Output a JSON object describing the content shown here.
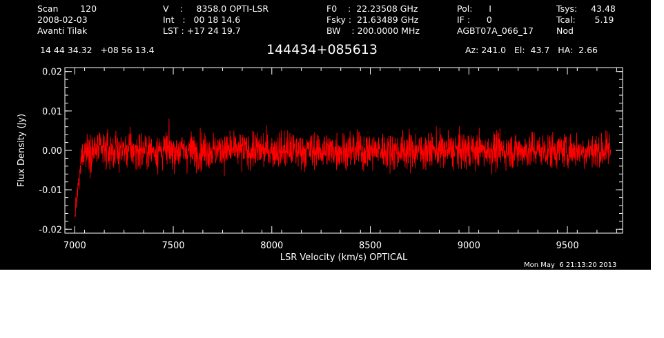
{
  "header": {
    "col1": [
      "Scan        120",
      "2008-02-03",
      "Avanti Tilak"
    ],
    "col2": [
      "V    :     8358.0 OPTI-LSR",
      "Int   :   00 18 14.6",
      "LST : +17 24 19.7"
    ],
    "col3": [
      "F0    :  22.23508 GHz",
      "Fsky :  21.63489 GHz",
      "BW    : 200.0000 MHz"
    ],
    "col4": [
      "Pol:      I",
      "IF :      0",
      "AGBT07A_066_17"
    ],
    "col5": [
      "Tsys:     43.48",
      "Tcal:       5.19",
      "Nod"
    ],
    "coords": "14 44 34.32   +08 56 13.4",
    "source": "144434+085613",
    "pointing": "Az: 241.0   El:  43.7   HA:  2.66"
  },
  "footer": {
    "timestamp": "Mon May  6 21:13:20 2013"
  },
  "colors": {
    "background": "#000000",
    "axes": "#ffffff",
    "trace": "#ff0000"
  },
  "chart_data": {
    "type": "line",
    "title": "",
    "xlabel": "LSR Velocity (km/s) OPTICAL",
    "ylabel": "Flux Density (Jy)",
    "xlim": [
      6950,
      9780
    ],
    "ylim": [
      -0.021,
      0.021
    ],
    "xticks": [
      7000,
      7500,
      8000,
      8500,
      9000,
      9500
    ],
    "yticks": [
      -0.02,
      -0.01,
      0.0,
      0.01,
      0.02
    ],
    "ytick_labels": [
      "-0.02",
      "-0.01",
      "0.00",
      "0.01",
      "0.02"
    ],
    "series": [
      {
        "x_start": 7000,
        "x_end": 9720,
        "noise_sigma": 0.0045,
        "y_min": -0.019,
        "y_max": 0.0125,
        "edge_dip": {
          "x": 7015,
          "y": -0.019
        },
        "baseline": 0.0
      }
    ]
  }
}
